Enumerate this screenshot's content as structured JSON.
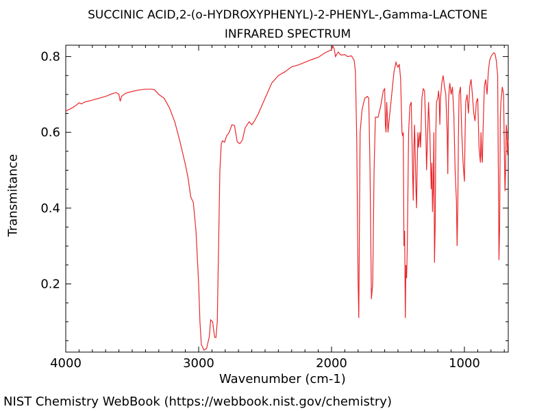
{
  "chart_data": {
    "type": "line",
    "title": "SUCCINIC ACID,2-(o-HYDROXYPHENYL)-2-PHENYL-,Gamma-LACTONE",
    "subtitle": "INFRARED SPECTRUM",
    "xlabel": "Wavenumber (cm-1)",
    "ylabel": "Transmitance",
    "xlim": [
      4000,
      670
    ],
    "ylim": [
      0.02,
      0.83
    ],
    "x_reversed": true,
    "grid": false,
    "line_color": "#e8262a",
    "x_ticks": [
      4000,
      3000,
      2000,
      1000
    ],
    "y_ticks": [
      0.2,
      0.4,
      0.6,
      0.8
    ],
    "x_tick_labels": [
      "4000",
      "3000",
      "2000",
      "1000"
    ],
    "y_tick_labels": [
      "0.2",
      "0.4",
      "0.6",
      "0.8"
    ],
    "series": [
      {
        "points": [
          [
            4000,
            0.656
          ],
          [
            3950,
            0.665
          ],
          [
            3920,
            0.672
          ],
          [
            3900,
            0.678
          ],
          [
            3880,
            0.675
          ],
          [
            3860,
            0.68
          ],
          [
            3800,
            0.685
          ],
          [
            3750,
            0.69
          ],
          [
            3700,
            0.695
          ],
          [
            3650,
            0.702
          ],
          [
            3620,
            0.705
          ],
          [
            3600,
            0.7
          ],
          [
            3590,
            0.682
          ],
          [
            3580,
            0.695
          ],
          [
            3550,
            0.703
          ],
          [
            3500,
            0.708
          ],
          [
            3450,
            0.712
          ],
          [
            3400,
            0.714
          ],
          [
            3350,
            0.714
          ],
          [
            3330,
            0.712
          ],
          [
            3300,
            0.7
          ],
          [
            3260,
            0.69
          ],
          [
            3220,
            0.665
          ],
          [
            3180,
            0.628
          ],
          [
            3140,
            0.575
          ],
          [
            3100,
            0.515
          ],
          [
            3080,
            0.48
          ],
          [
            3060,
            0.43
          ],
          [
            3040,
            0.415
          ],
          [
            3020,
            0.34
          ],
          [
            3000,
            0.2
          ],
          [
            2990,
            0.1
          ],
          [
            2980,
            0.04
          ],
          [
            2960,
            0.025
          ],
          [
            2940,
            0.03
          ],
          [
            2920,
            0.06
          ],
          [
            2910,
            0.105
          ],
          [
            2895,
            0.1
          ],
          [
            2880,
            0.06
          ],
          [
            2870,
            0.058
          ],
          [
            2860,
            0.1
          ],
          [
            2850,
            0.3
          ],
          [
            2840,
            0.5
          ],
          [
            2830,
            0.57
          ],
          [
            2820,
            0.578
          ],
          [
            2805,
            0.574
          ],
          [
            2790,
            0.59
          ],
          [
            2770,
            0.6
          ],
          [
            2750,
            0.62
          ],
          [
            2730,
            0.618
          ],
          [
            2710,
            0.575
          ],
          [
            2690,
            0.57
          ],
          [
            2670,
            0.58
          ],
          [
            2650,
            0.612
          ],
          [
            2620,
            0.628
          ],
          [
            2600,
            0.62
          ],
          [
            2580,
            0.63
          ],
          [
            2550,
            0.65
          ],
          [
            2500,
            0.69
          ],
          [
            2450,
            0.73
          ],
          [
            2400,
            0.75
          ],
          [
            2350,
            0.76
          ],
          [
            2300,
            0.773
          ],
          [
            2250,
            0.778
          ],
          [
            2200,
            0.785
          ],
          [
            2150,
            0.792
          ],
          [
            2100,
            0.798
          ],
          [
            2050,
            0.81
          ],
          [
            2000,
            0.818
          ],
          [
            1990,
            0.828
          ],
          [
            1980,
            0.82
          ],
          [
            1970,
            0.8
          ],
          [
            1950,
            0.812
          ],
          [
            1930,
            0.804
          ],
          [
            1900,
            0.805
          ],
          [
            1880,
            0.8
          ],
          [
            1850,
            0.802
          ],
          [
            1830,
            0.79
          ],
          [
            1820,
            0.76
          ],
          [
            1810,
            0.58
          ],
          [
            1800,
            0.2
          ],
          [
            1795,
            0.11
          ],
          [
            1790,
            0.35
          ],
          [
            1785,
            0.6
          ],
          [
            1770,
            0.66
          ],
          [
            1750,
            0.69
          ],
          [
            1730,
            0.695
          ],
          [
            1720,
            0.69
          ],
          [
            1710,
            0.5
          ],
          [
            1700,
            0.16
          ],
          [
            1690,
            0.2
          ],
          [
            1680,
            0.5
          ],
          [
            1670,
            0.64
          ],
          [
            1650,
            0.64
          ],
          [
            1630,
            0.67
          ],
          [
            1610,
            0.71
          ],
          [
            1600,
            0.715
          ],
          [
            1595,
            0.62
          ],
          [
            1590,
            0.6
          ],
          [
            1585,
            0.68
          ],
          [
            1580,
            0.64
          ],
          [
            1575,
            0.6
          ],
          [
            1570,
            0.62
          ],
          [
            1550,
            0.69
          ],
          [
            1530,
            0.76
          ],
          [
            1515,
            0.785
          ],
          [
            1505,
            0.775
          ],
          [
            1500,
            0.772
          ],
          [
            1490,
            0.78
          ],
          [
            1480,
            0.74
          ],
          [
            1470,
            0.6
          ],
          [
            1465,
            0.59
          ],
          [
            1460,
            0.6
          ],
          [
            1455,
            0.3
          ],
          [
            1450,
            0.34
          ],
          [
            1445,
            0.11
          ],
          [
            1440,
            0.25
          ],
          [
            1435,
            0.215
          ],
          [
            1430,
            0.3
          ],
          [
            1420,
            0.6
          ],
          [
            1410,
            0.67
          ],
          [
            1400,
            0.68
          ],
          [
            1390,
            0.5
          ],
          [
            1385,
            0.42
          ],
          [
            1380,
            0.56
          ],
          [
            1375,
            0.62
          ],
          [
            1370,
            0.54
          ],
          [
            1365,
            0.45
          ],
          [
            1360,
            0.4
          ],
          [
            1355,
            0.52
          ],
          [
            1350,
            0.6
          ],
          [
            1345,
            0.56
          ],
          [
            1340,
            0.58
          ],
          [
            1335,
            0.6
          ],
          [
            1330,
            0.56
          ],
          [
            1320,
            0.69
          ],
          [
            1310,
            0.715
          ],
          [
            1300,
            0.71
          ],
          [
            1290,
            0.6
          ],
          [
            1285,
            0.5
          ],
          [
            1280,
            0.56
          ],
          [
            1270,
            0.68
          ],
          [
            1260,
            0.6
          ],
          [
            1255,
            0.52
          ],
          [
            1250,
            0.45
          ],
          [
            1245,
            0.52
          ],
          [
            1240,
            0.39
          ],
          [
            1235,
            0.45
          ],
          [
            1230,
            0.6
          ],
          [
            1225,
            0.256
          ],
          [
            1220,
            0.35
          ],
          [
            1215,
            0.6
          ],
          [
            1210,
            0.68
          ],
          [
            1200,
            0.69
          ],
          [
            1195,
            0.71
          ],
          [
            1190,
            0.69
          ],
          [
            1185,
            0.62
          ],
          [
            1180,
            0.69
          ],
          [
            1170,
            0.73
          ],
          [
            1160,
            0.75
          ],
          [
            1150,
            0.72
          ],
          [
            1140,
            0.7
          ],
          [
            1130,
            0.6
          ],
          [
            1125,
            0.49
          ],
          [
            1120,
            0.68
          ],
          [
            1115,
            0.71
          ],
          [
            1110,
            0.73
          ],
          [
            1100,
            0.7
          ],
          [
            1090,
            0.72
          ],
          [
            1080,
            0.65
          ],
          [
            1070,
            0.5
          ],
          [
            1060,
            0.42
          ],
          [
            1055,
            0.3
          ],
          [
            1050,
            0.4
          ],
          [
            1045,
            0.6
          ],
          [
            1040,
            0.7
          ],
          [
            1030,
            0.72
          ],
          [
            1020,
            0.6
          ],
          [
            1010,
            0.52
          ],
          [
            1000,
            0.47
          ],
          [
            995,
            0.6
          ],
          [
            990,
            0.68
          ],
          [
            980,
            0.7
          ],
          [
            970,
            0.65
          ],
          [
            960,
            0.72
          ],
          [
            950,
            0.74
          ],
          [
            940,
            0.7
          ],
          [
            930,
            0.65
          ],
          [
            920,
            0.63
          ],
          [
            910,
            0.68
          ],
          [
            900,
            0.69
          ],
          [
            890,
            0.56
          ],
          [
            880,
            0.52
          ],
          [
            875,
            0.6
          ],
          [
            870,
            0.54
          ],
          [
            865,
            0.52
          ],
          [
            860,
            0.6
          ],
          [
            850,
            0.72
          ],
          [
            840,
            0.74
          ],
          [
            830,
            0.7
          ],
          [
            820,
            0.76
          ],
          [
            810,
            0.79
          ],
          [
            800,
            0.8
          ],
          [
            790,
            0.805
          ],
          [
            780,
            0.81
          ],
          [
            770,
            0.808
          ],
          [
            760,
            0.79
          ],
          [
            750,
            0.75
          ],
          [
            745,
            0.5
          ],
          [
            740,
            0.263
          ],
          [
            735,
            0.35
          ],
          [
            730,
            0.64
          ],
          [
            725,
            0.68
          ],
          [
            715,
            0.72
          ],
          [
            705,
            0.7
          ],
          [
            700,
            0.56
          ],
          [
            695,
            0.445
          ],
          [
            690,
            0.5
          ],
          [
            685,
            0.62
          ],
          [
            680,
            0.6
          ],
          [
            675,
            0.54
          ],
          [
            670,
            0.58
          ]
        ]
      }
    ]
  },
  "footer": "NIST Chemistry WebBook (https://webbook.nist.gov/chemistry)"
}
